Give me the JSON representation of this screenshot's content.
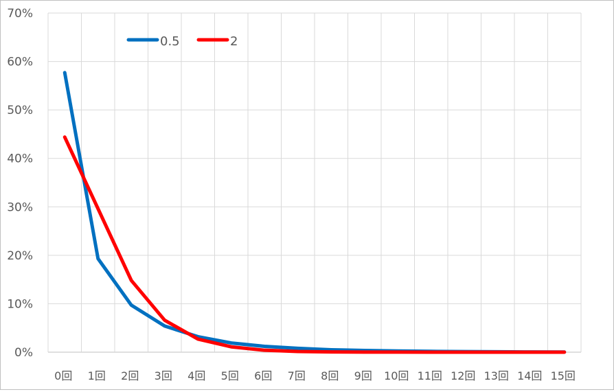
{
  "chart_data": {
    "type": "line",
    "categories": [
      "0回",
      "1回",
      "2回",
      "3回",
      "4回",
      "5回",
      "6回",
      "7回",
      "8回",
      "9回",
      "10回",
      "11回",
      "12回",
      "13回",
      "14回",
      "15回"
    ],
    "ylim": [
      0,
      70
    ],
    "yticks": [
      "0%",
      "10%",
      "20%",
      "30%",
      "40%",
      "50%",
      "60%",
      "70%"
    ],
    "legend_position": "top-left",
    "series": [
      {
        "name": "0.5",
        "color": "#0070c0",
        "values": [
          57.7,
          19.3,
          9.7,
          5.4,
          3.2,
          1.9,
          1.2,
          0.8,
          0.5,
          0.35,
          0.25,
          0.17,
          0.12,
          0.08,
          0.05,
          0.03
        ]
      },
      {
        "name": "2",
        "color": "#ff0000",
        "values": [
          44.4,
          29.6,
          14.8,
          6.6,
          2.7,
          1.1,
          0.4,
          0.15,
          0.06,
          0.02,
          0.01,
          0.0,
          0.0,
          0.0,
          0.0,
          0.0
        ]
      }
    ]
  }
}
